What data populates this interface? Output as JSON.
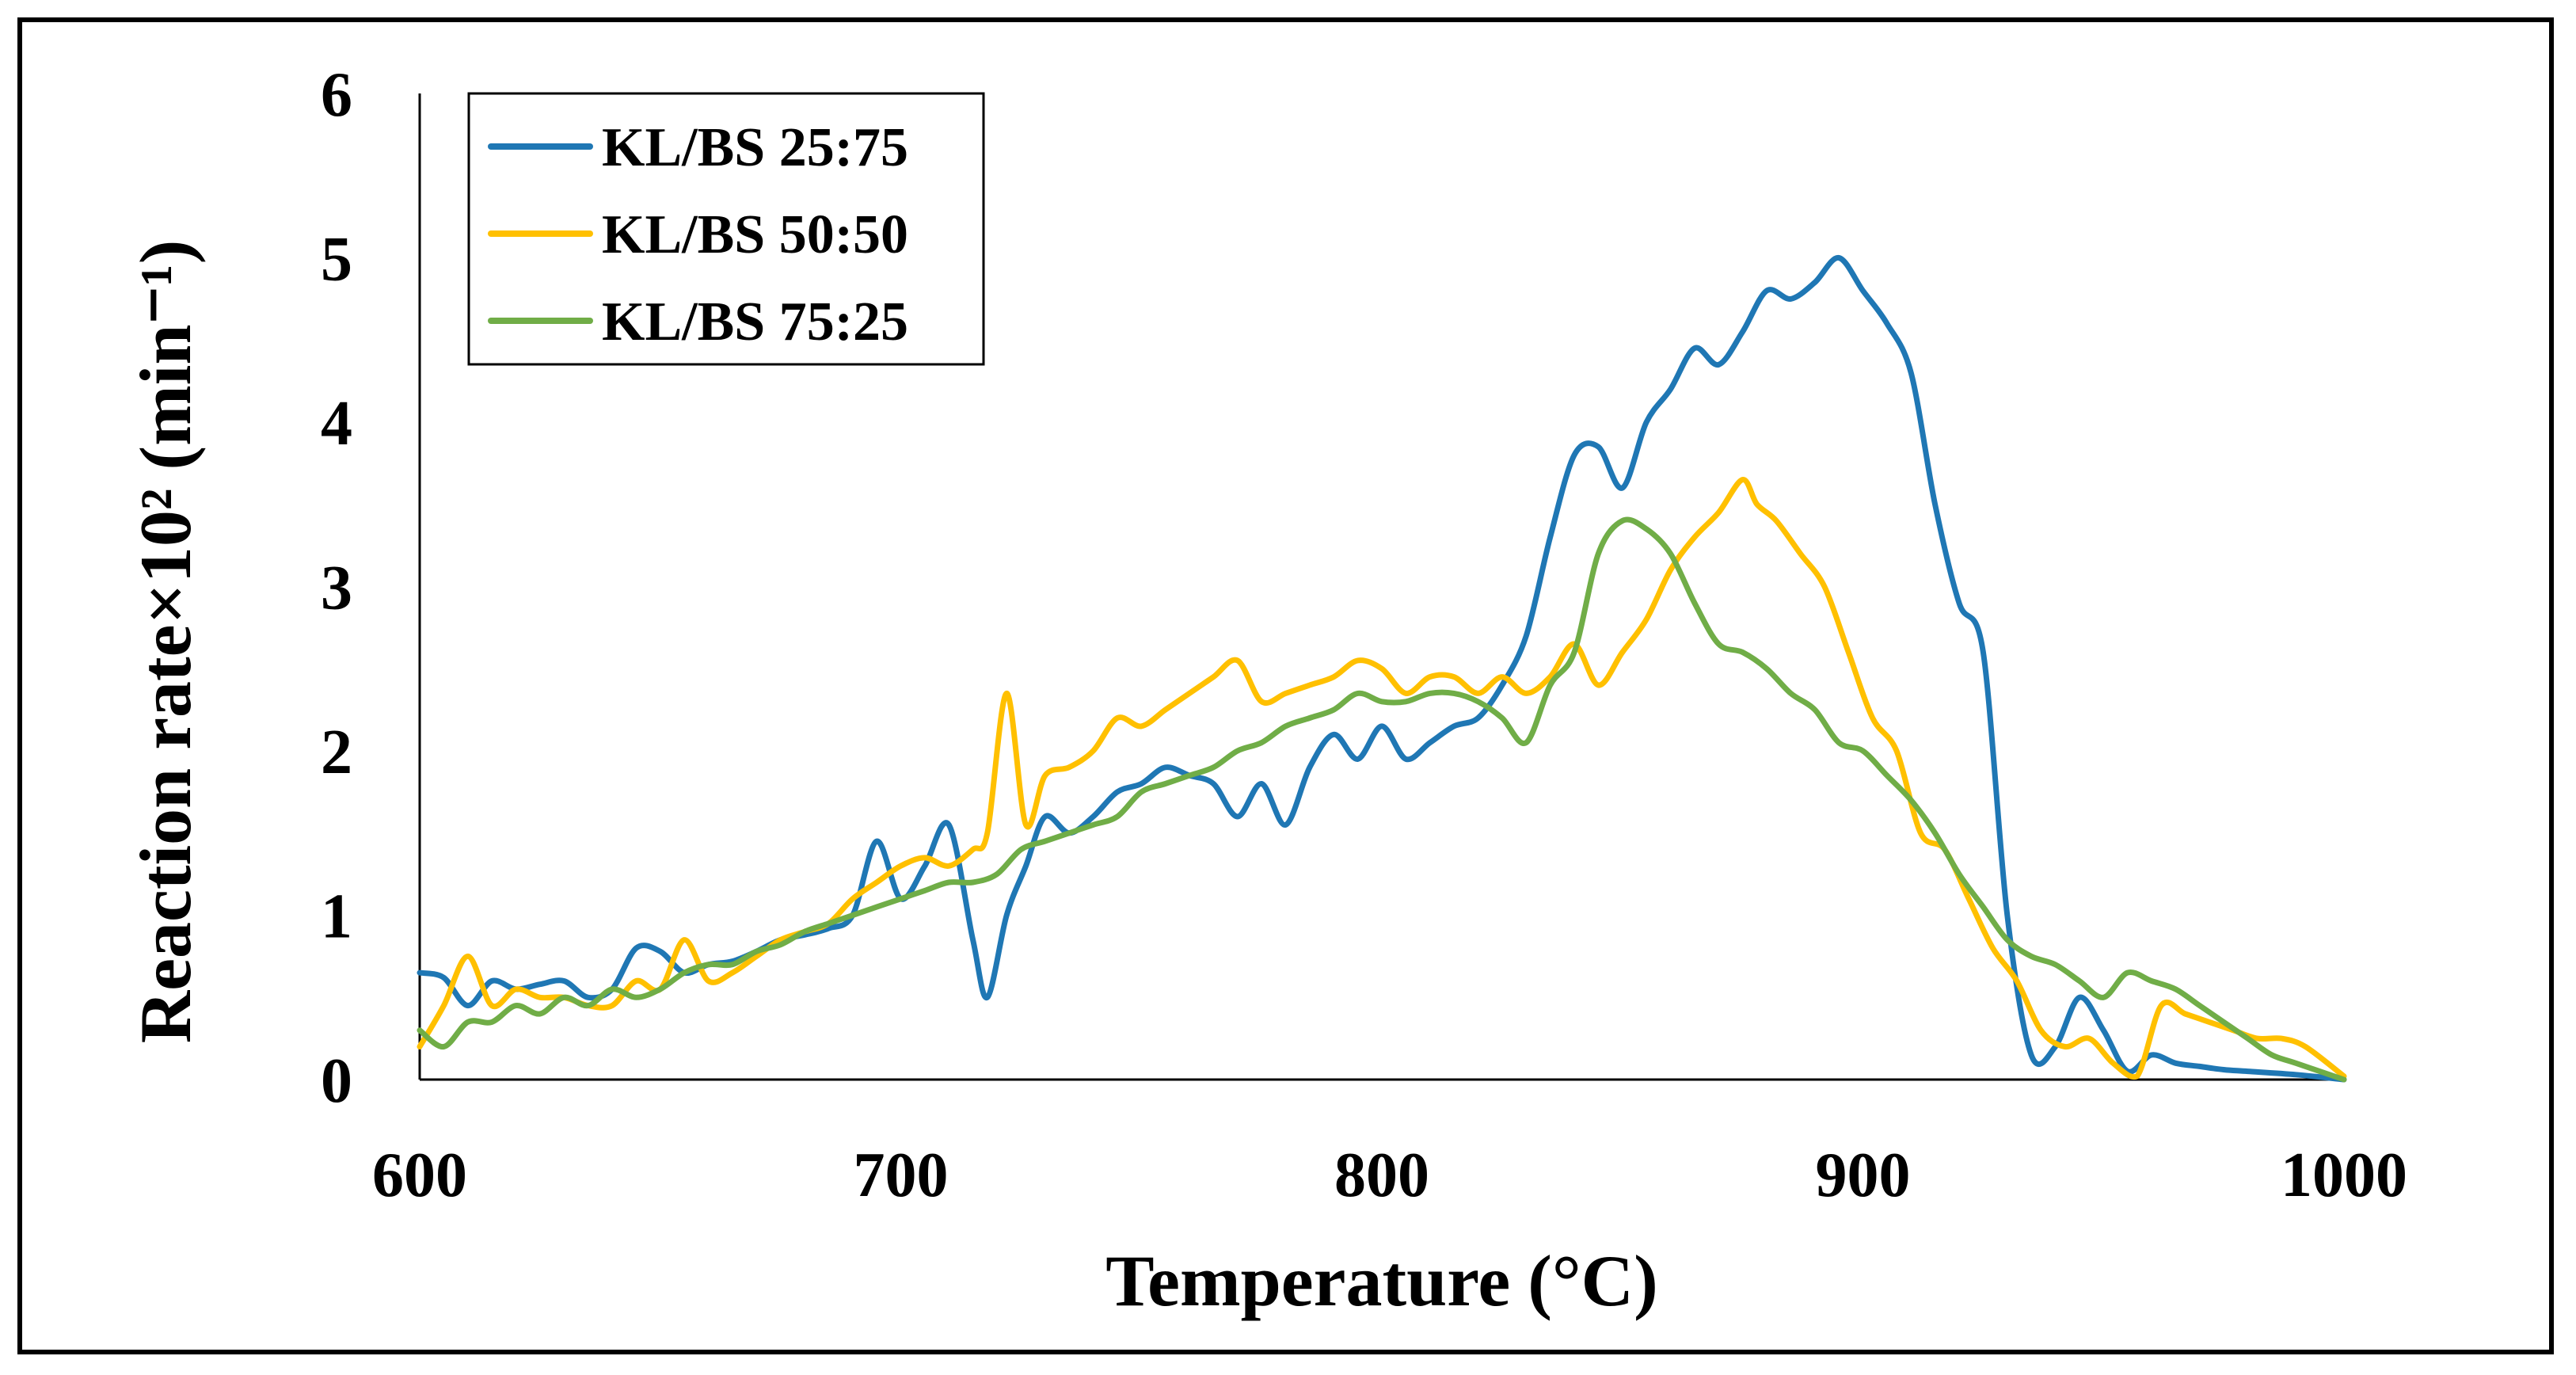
{
  "chart_data": {
    "type": "line",
    "title": "",
    "xlabel": "Temperature",
    "xlabel_unit": "(°C)",
    "ylabel": "Reaction rate×10² (min⁻¹)",
    "xlim": [
      600,
      1000
    ],
    "ylim": [
      0,
      6
    ],
    "x_ticks": [
      "600",
      "700",
      "800",
      "900",
      "1000"
    ],
    "y_ticks": [
      "0",
      "1",
      "2",
      "3",
      "4",
      "5",
      "6"
    ],
    "grid": false,
    "legend_position": "top-left",
    "colors": {
      "KL/BS 25:75": "#1f77b4",
      "KL/BS 50:50": "#ffc000",
      "KL/BS 75:25": "#70ad47"
    },
    "series": [
      {
        "name": "KL/BS 25:75",
        "color": "#1f77b4",
        "x": [
          600,
          605,
          610,
          615,
          620,
          625,
          630,
          635,
          640,
          645,
          650,
          655,
          660,
          665,
          670,
          675,
          680,
          685,
          690,
          695,
          700,
          705,
          710,
          715,
          718,
          722,
          726,
          730,
          735,
          740,
          745,
          750,
          755,
          760,
          765,
          770,
          775,
          780,
          785,
          790,
          795,
          800,
          805,
          810,
          815,
          820,
          825,
          830,
          835,
          840,
          845,
          850,
          855,
          860,
          865,
          870,
          875,
          880,
          885,
          890,
          895,
          900,
          905,
          910,
          915,
          920,
          925,
          930,
          935,
          940,
          945,
          950,
          955,
          960,
          965,
          970,
          975,
          980,
          990,
          1000
        ],
        "values": [
          0.65,
          0.62,
          0.45,
          0.6,
          0.55,
          0.58,
          0.6,
          0.5,
          0.55,
          0.8,
          0.78,
          0.65,
          0.7,
          0.72,
          0.78,
          0.85,
          0.88,
          0.92,
          1.0,
          1.45,
          1.1,
          1.3,
          1.55,
          0.85,
          0.5,
          1.0,
          1.3,
          1.6,
          1.5,
          1.6,
          1.75,
          1.8,
          1.9,
          1.85,
          1.8,
          1.6,
          1.8,
          1.55,
          1.9,
          2.1,
          1.95,
          2.15,
          1.95,
          2.05,
          2.15,
          2.2,
          2.4,
          2.7,
          3.3,
          3.8,
          3.85,
          3.6,
          4.0,
          4.2,
          4.45,
          4.35,
          4.55,
          4.8,
          4.75,
          4.85,
          5.0,
          4.8,
          4.6,
          4.3,
          3.5,
          2.9,
          2.6,
          1.0,
          0.15,
          0.2,
          0.5,
          0.3,
          0.05,
          0.15,
          0.1,
          0.08,
          0.06,
          0.05,
          0.03,
          0.0
        ]
      },
      {
        "name": "KL/BS 50:50",
        "color": "#ffc000",
        "x": [
          600,
          605,
          610,
          615,
          620,
          625,
          630,
          635,
          640,
          645,
          650,
          655,
          660,
          665,
          670,
          675,
          680,
          685,
          690,
          695,
          700,
          705,
          710,
          715,
          718,
          722,
          726,
          730,
          735,
          740,
          745,
          750,
          755,
          760,
          765,
          770,
          775,
          780,
          785,
          790,
          795,
          800,
          805,
          810,
          815,
          820,
          825,
          830,
          835,
          840,
          845,
          850,
          855,
          860,
          865,
          870,
          875,
          878,
          882,
          887,
          892,
          897,
          902,
          907,
          912,
          917,
          922,
          927,
          932,
          937,
          942,
          947,
          952,
          957,
          962,
          967,
          972,
          977,
          982,
          987,
          992,
          1000
        ],
        "values": [
          0.2,
          0.45,
          0.75,
          0.45,
          0.55,
          0.5,
          0.5,
          0.45,
          0.45,
          0.6,
          0.55,
          0.85,
          0.6,
          0.65,
          0.75,
          0.85,
          0.9,
          0.95,
          1.1,
          1.2,
          1.3,
          1.35,
          1.3,
          1.4,
          1.5,
          2.35,
          1.55,
          1.85,
          1.9,
          2.0,
          2.2,
          2.15,
          2.25,
          2.35,
          2.45,
          2.55,
          2.3,
          2.35,
          2.4,
          2.45,
          2.55,
          2.5,
          2.35,
          2.45,
          2.45,
          2.35,
          2.45,
          2.35,
          2.45,
          2.65,
          2.4,
          2.6,
          2.8,
          3.1,
          3.3,
          3.45,
          3.65,
          3.5,
          3.4,
          3.2,
          3.0,
          2.6,
          2.2,
          2.0,
          1.5,
          1.4,
          1.1,
          0.8,
          0.6,
          0.3,
          0.2,
          0.25,
          0.1,
          0.02,
          0.45,
          0.4,
          0.35,
          0.3,
          0.25,
          0.25,
          0.2,
          0.02
        ]
      },
      {
        "name": "KL/BS 75:25",
        "color": "#70ad47",
        "x": [
          600,
          605,
          610,
          615,
          620,
          625,
          630,
          635,
          640,
          645,
          650,
          655,
          660,
          665,
          670,
          675,
          680,
          685,
          690,
          695,
          700,
          705,
          710,
          715,
          720,
          725,
          730,
          735,
          740,
          745,
          750,
          755,
          760,
          765,
          770,
          775,
          780,
          785,
          790,
          795,
          800,
          805,
          810,
          815,
          820,
          825,
          830,
          835,
          840,
          845,
          850,
          855,
          860,
          865,
          870,
          875,
          880,
          885,
          890,
          895,
          900,
          905,
          910,
          915,
          920,
          925,
          930,
          935,
          940,
          945,
          950,
          955,
          960,
          965,
          970,
          975,
          980,
          985,
          990,
          1000
        ],
        "values": [
          0.3,
          0.2,
          0.35,
          0.35,
          0.45,
          0.4,
          0.5,
          0.45,
          0.55,
          0.5,
          0.55,
          0.65,
          0.7,
          0.7,
          0.78,
          0.82,
          0.9,
          0.95,
          1.0,
          1.05,
          1.1,
          1.15,
          1.2,
          1.2,
          1.25,
          1.4,
          1.45,
          1.5,
          1.55,
          1.6,
          1.75,
          1.8,
          1.85,
          1.9,
          2.0,
          2.05,
          2.15,
          2.2,
          2.25,
          2.35,
          2.3,
          2.3,
          2.35,
          2.35,
          2.3,
          2.2,
          2.05,
          2.4,
          2.6,
          3.2,
          3.4,
          3.35,
          3.2,
          2.9,
          2.65,
          2.6,
          2.5,
          2.35,
          2.25,
          2.05,
          2.0,
          1.85,
          1.7,
          1.5,
          1.25,
          1.05,
          0.85,
          0.75,
          0.7,
          0.6,
          0.5,
          0.65,
          0.6,
          0.55,
          0.45,
          0.35,
          0.25,
          0.15,
          0.1,
          0.0
        ]
      }
    ]
  }
}
